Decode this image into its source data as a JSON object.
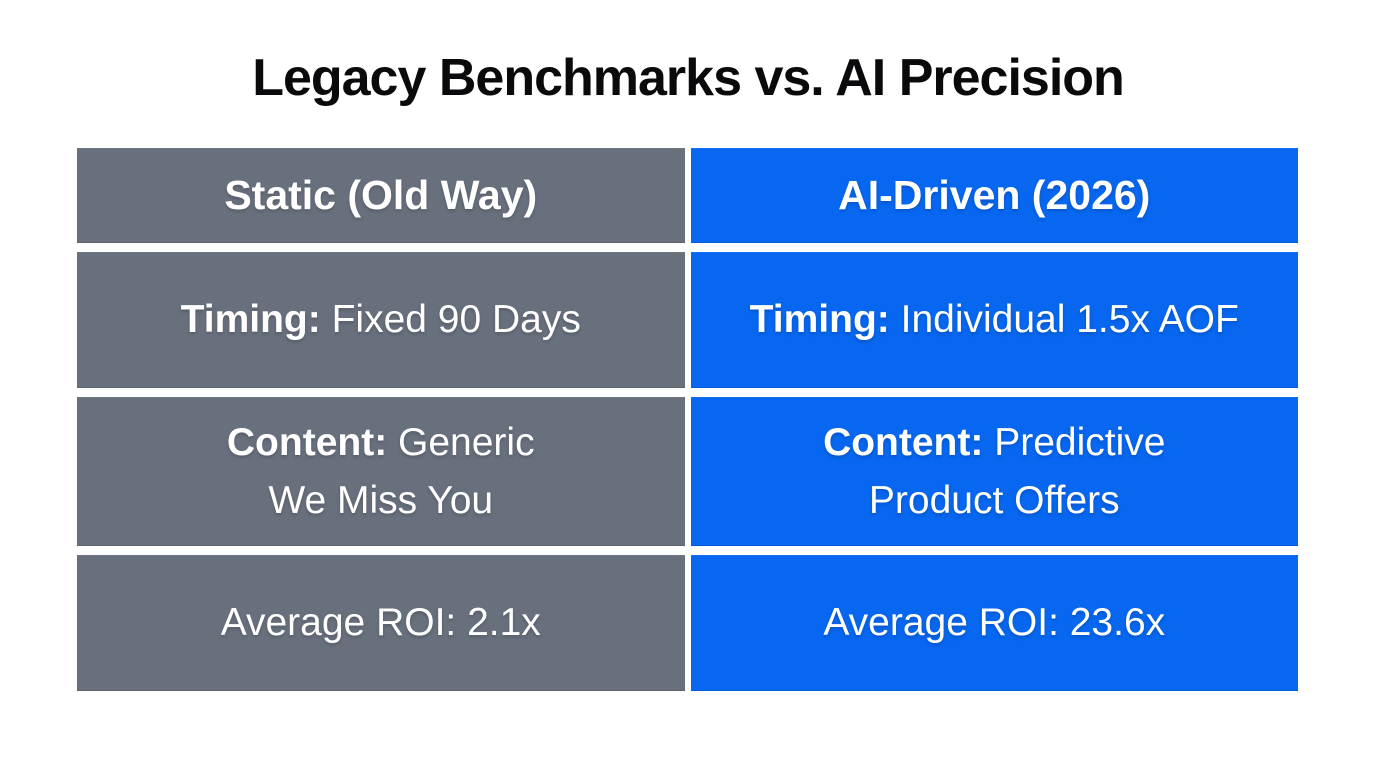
{
  "title": "Legacy Benchmarks vs. AI Precision",
  "colors": {
    "page_bg": "#FFFFFF",
    "title_text": "#0A0A0C",
    "legacy_column_bg": "#68707D",
    "ai_column_bg": "#0767F0",
    "cell_text": "#FFFFFF"
  },
  "table": {
    "columns": [
      {
        "key": "legacy",
        "header": "Static (Old Way)"
      },
      {
        "key": "ai",
        "header": "AI-Driven (2026)"
      }
    ],
    "rows": [
      {
        "legacy": {
          "label": "Timing:",
          "value": " Fixed 90 Days"
        },
        "ai": {
          "label": "Timing:",
          "value": " Individual 1.5x AOF"
        }
      },
      {
        "legacy": {
          "label": "Content:",
          "value": " Generic",
          "value_line2": "We Miss You"
        },
        "ai": {
          "label": "Content:",
          "value": " Predictive",
          "value_line2": "Product Offers"
        }
      },
      {
        "legacy": {
          "value": "Average ROI: 2.1x"
        },
        "ai": {
          "value": "Average ROI: 23.6x"
        }
      }
    ]
  },
  "chart_data": {
    "type": "table",
    "title": "Legacy Benchmarks vs. AI Precision",
    "columns": [
      "Static (Old Way)",
      "AI-Driven (2026)"
    ],
    "rows": [
      [
        "Timing: Fixed 90 Days",
        "Timing: Individual 1.5x AOF"
      ],
      [
        "Content: Generic We Miss You",
        "Content: Predictive Product Offers"
      ],
      [
        "Average ROI: 2.1x",
        "Average ROI: 23.6x"
      ]
    ],
    "layout": {
      "legend_position": "none",
      "grid": false,
      "highlight_column": "AI-Driven (2026)",
      "highlight_color": "#0767F0",
      "muted_color": "#68707D"
    }
  }
}
